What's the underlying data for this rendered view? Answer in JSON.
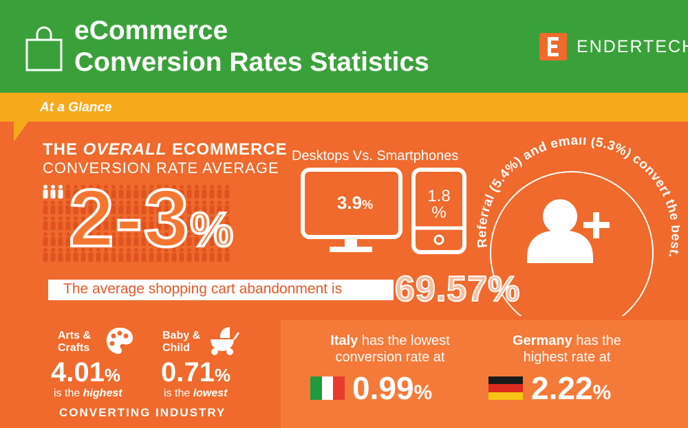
{
  "header": {
    "title_line1": "eCommerce",
    "title_line2": "Conversion Rates Statistics",
    "brand": "ENDERTECH",
    "colors": {
      "green": "#3aa13a",
      "orange": "#ef6a2c",
      "yellow": "#f7a91c"
    }
  },
  "glance": {
    "label": "At a Glance"
  },
  "overall": {
    "line1_pre": "THE ",
    "line1_em": "OVERALL",
    "line1_post": " ECOMMERCE",
    "line2": "CONVERSION RATE AVERAGE",
    "value": "2-3",
    "unit": "%"
  },
  "devices": {
    "title": "Desktops Vs. Smartphones",
    "desktop_value": "3.9",
    "desktop_unit": "%",
    "phone_value": "1.8",
    "phone_unit": "%"
  },
  "referral": {
    "text": "Referral (5.4%) and email (5.3%) convert the best."
  },
  "abandonment": {
    "text": "The average shopping cart abandonment is",
    "value": "69.57",
    "unit": "%"
  },
  "industry": {
    "arts_label1": "Arts &",
    "arts_label2": "Crafts",
    "arts_value": "4.01",
    "arts_unit": "%",
    "arts_note_pre": "is the ",
    "arts_note_em": "highest",
    "baby_label1": "Baby &",
    "baby_label2": "Child",
    "baby_value": "0.71",
    "baby_unit": "%",
    "baby_note_pre": "is the ",
    "baby_note_em": "lowest",
    "footer": "CONVERTING INDUSTRY"
  },
  "countries": {
    "italy_name": "Italy",
    "italy_line1_post": " has the lowest",
    "italy_line2": "conversion rate at",
    "italy_value": "0.99",
    "italy_unit": "%",
    "germany_name": "Germany",
    "germany_line1_post": " has the",
    "germany_line2": "highest rate at",
    "germany_value": "2.22",
    "germany_unit": "%"
  }
}
